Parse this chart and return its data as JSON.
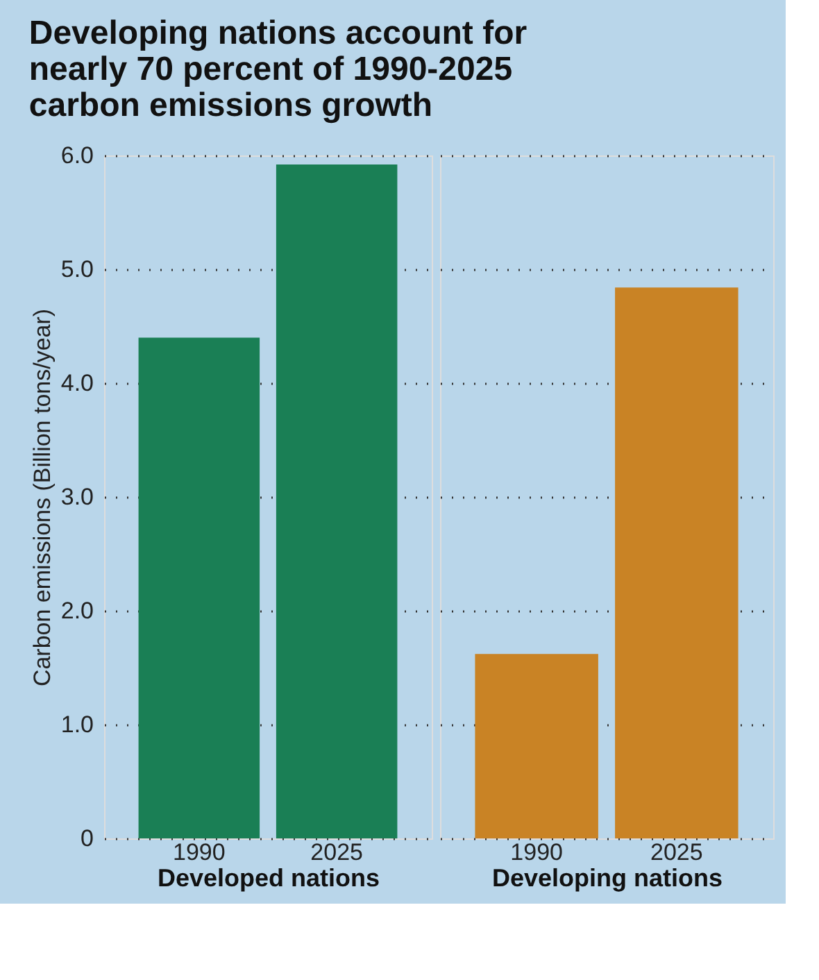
{
  "chart_data": [
    {
      "type": "bar",
      "title": "Developing nations account for nearly 70 percent of 1990-2025 carbon emissions growth",
      "ylabel": "Carbon emissions (Billion tons/year)",
      "xlabel": "Developed nations",
      "categories": [
        "1990",
        "2025"
      ],
      "values": [
        4.4,
        5.92
      ],
      "color": "#1a7f55",
      "ylim": [
        0,
        6
      ],
      "yticks": [
        0,
        {
          "value": 1,
          "label": "1.0"
        },
        {
          "value": 2,
          "label": "2.0"
        },
        {
          "value": 3,
          "label": "3.0"
        },
        {
          "value": 4,
          "label": "4.0"
        },
        {
          "value": 5,
          "label": "5.0"
        },
        {
          "value": 6,
          "label": "6.0"
        }
      ],
      "grid": "y"
    },
    {
      "type": "bar",
      "xlabel": "Developing nations",
      "categories": [
        "1990",
        "2025"
      ],
      "values": [
        1.62,
        4.84
      ],
      "color": "#c98325",
      "ylim": [
        0,
        6
      ],
      "yticks": [
        0,
        1,
        2,
        3,
        4,
        5,
        6
      ],
      "grid": "y",
      "tick_labels": "x"
    }
  ]
}
